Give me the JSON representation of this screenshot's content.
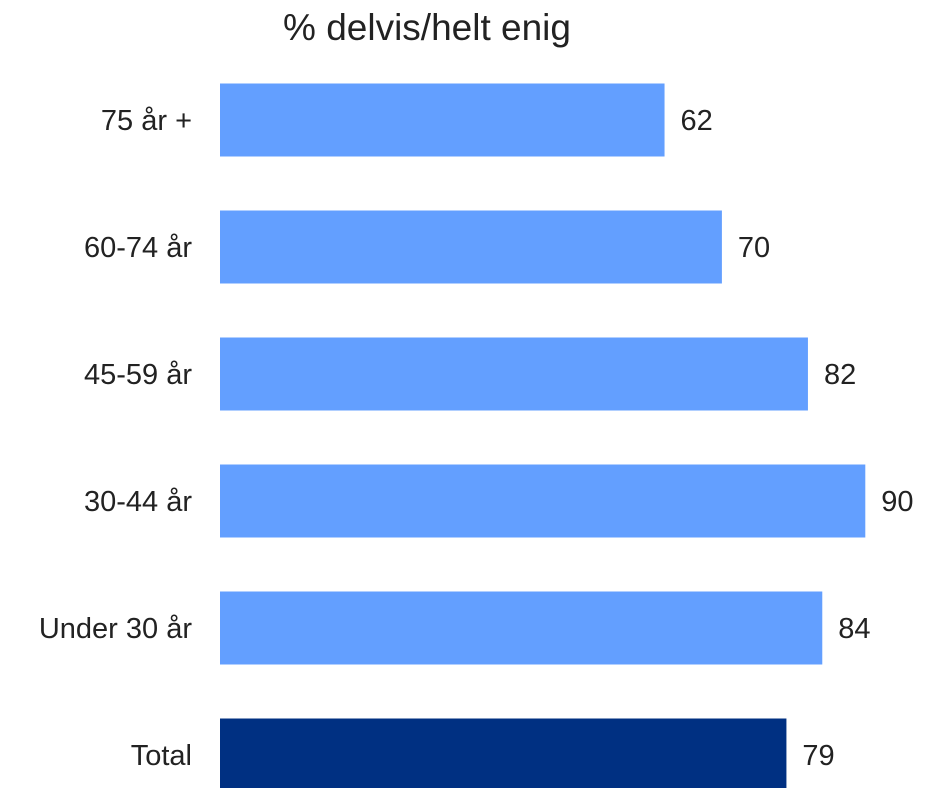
{
  "chart_data": {
    "type": "bar",
    "orientation": "horizontal",
    "title": "% delvis/helt enig",
    "xlabel": "",
    "ylabel": "",
    "categories": [
      "75 år +",
      "60-74 år",
      "45-59 år",
      "30-44 år",
      "Under 30 år",
      "Total"
    ],
    "values": [
      62,
      70,
      82,
      90,
      84,
      79
    ],
    "value_labels": [
      "62",
      "70",
      "82",
      "90",
      "84",
      "79"
    ],
    "xlim": [
      0,
      100
    ],
    "grid": false,
    "legend": "none",
    "colors": {
      "default": "#639FFF",
      "highlight": "#003082"
    },
    "highlight_category": "Total"
  }
}
